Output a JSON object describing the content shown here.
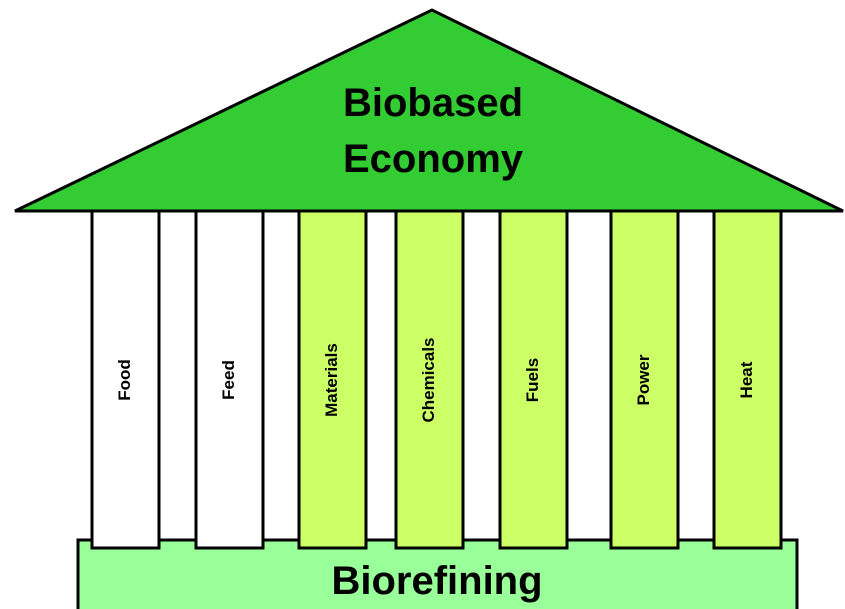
{
  "roof": {
    "title_lines": [
      "Biobased",
      "Economy"
    ],
    "color": "#33cc33"
  },
  "pillars": [
    {
      "label": "Food",
      "color": "#ffffff"
    },
    {
      "label": "Feed",
      "color": "#ffffff"
    },
    {
      "label": "Materials",
      "color": "#ccff66"
    },
    {
      "label": "Chemicals",
      "color": "#ccff66"
    },
    {
      "label": "Fuels",
      "color": "#ccff66"
    },
    {
      "label": "Power",
      "color": "#ccff66"
    },
    {
      "label": "Heat",
      "color": "#ccff66"
    }
  ],
  "base": {
    "label": "Biorefining",
    "color": "#99ff99"
  }
}
